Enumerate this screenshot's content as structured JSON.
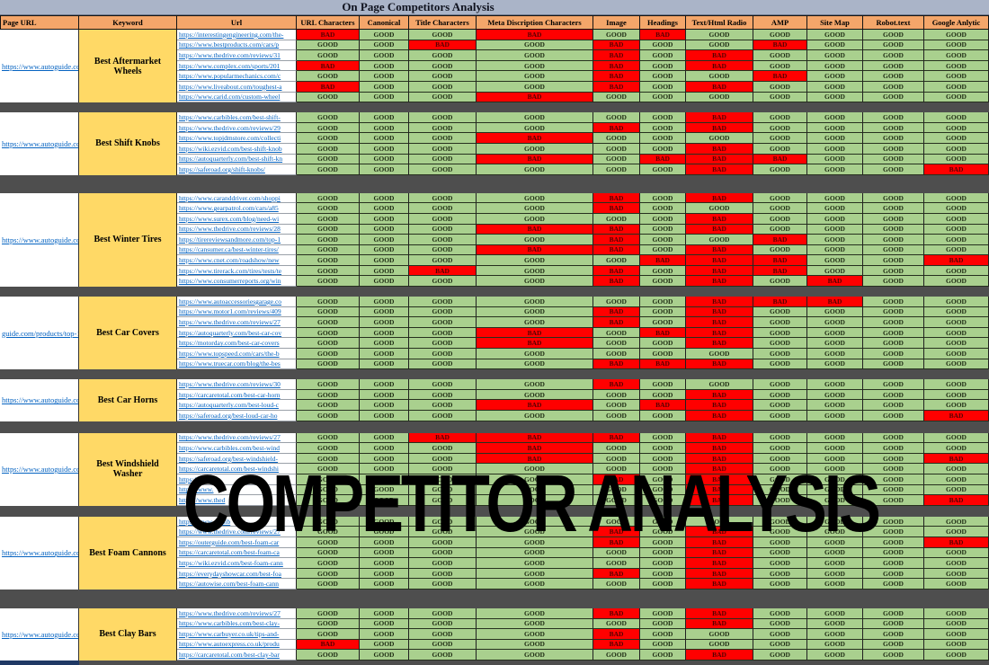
{
  "title": "On Page Competitors Analysis",
  "watermark": "COMPETITOR ANALYSIS",
  "columns": [
    "Page URL",
    "Keyword",
    "Url",
    "URL Characters",
    "Canonical",
    "Title Characters",
    "Meta Discription Characters",
    "Image",
    "Headings",
    "Text/Html Radio",
    "AMP",
    "Site Map",
    "Robot.text",
    "Google Anlytic"
  ],
  "colors": {
    "good_bg": "#a9d08e",
    "bad_bg": "#ff0000",
    "header_bg": "#f4a66a",
    "keyword_bg": "#ffd966",
    "title_bar_bg": "#aab4c8",
    "separator": "#4e4e4e",
    "link": "#0563c1",
    "partial_row_bg": "#1f3864"
  },
  "groups": [
    {
      "page_url": "https://www.autoguide.co",
      "keyword": "Best Aftermarket Wheels",
      "rows": [
        {
          "url": "https://interestingengineering.com/the-",
          "values": [
            "BAD",
            "GOOD",
            "GOOD",
            "BAD",
            "GOOD",
            "BAD",
            "GOOD",
            "GOOD",
            "GOOD",
            "GOOD",
            "GOOD"
          ]
        },
        {
          "url": "https://www.bestproducts.com/cars/p",
          "values": [
            "GOOD",
            "GOOD",
            "BAD",
            "GOOD",
            "BAD",
            "GOOD",
            "GOOD",
            "BAD",
            "GOOD",
            "GOOD",
            "GOOD"
          ]
        },
        {
          "url": "https://www.thedrive.com/reviews/31",
          "values": [
            "GOOD",
            "GOOD",
            "GOOD",
            "GOOD",
            "BAD",
            "GOOD",
            "BAD",
            "GOOD",
            "GOOD",
            "GOOD",
            "GOOD"
          ]
        },
        {
          "url": "https://www.complex.com/sports/201",
          "values": [
            "BAD",
            "GOOD",
            "GOOD",
            "GOOD",
            "BAD",
            "GOOD",
            "BAD",
            "GOOD",
            "GOOD",
            "GOOD",
            "GOOD"
          ]
        },
        {
          "url": "https://www.popularmechanics.com/c",
          "values": [
            "GOOD",
            "GOOD",
            "GOOD",
            "GOOD",
            "BAD",
            "GOOD",
            "GOOD",
            "BAD",
            "GOOD",
            "GOOD",
            "GOOD"
          ]
        },
        {
          "url": "https://www.liveabout.com/toughest-a",
          "values": [
            "BAD",
            "GOOD",
            "GOOD",
            "GOOD",
            "BAD",
            "GOOD",
            "BAD",
            "GOOD",
            "GOOD",
            "GOOD",
            "GOOD"
          ]
        },
        {
          "url": "https://www.carid.com/custom-wheel",
          "values": [
            "GOOD",
            "GOOD",
            "GOOD",
            "BAD",
            "GOOD",
            "GOOD",
            "GOOD",
            "GOOD",
            "GOOD",
            "GOOD",
            "GOOD"
          ]
        }
      ]
    },
    {
      "page_url": "https://www.autoguide.co",
      "keyword": "Best Shift Knobs",
      "rows": [
        {
          "url": "https://www.carbibles.com/best-shift-",
          "values": [
            "GOOD",
            "GOOD",
            "GOOD",
            "GOOD",
            "GOOD",
            "GOOD",
            "BAD",
            "GOOD",
            "GOOD",
            "GOOD",
            "GOOD"
          ]
        },
        {
          "url": "https://www.thedrive.com/reviews/29",
          "values": [
            "GOOD",
            "GOOD",
            "GOOD",
            "GOOD",
            "BAD",
            "GOOD",
            "BAD",
            "GOOD",
            "GOOD",
            "GOOD",
            "GOOD"
          ]
        },
        {
          "url": "https://www.topjdmstore.com/collecti",
          "values": [
            "GOOD",
            "GOOD",
            "GOOD",
            "BAD",
            "GOOD",
            "GOOD",
            "GOOD",
            "GOOD",
            "GOOD",
            "GOOD",
            "GOOD"
          ]
        },
        {
          "url": "https://wiki.ezvid.com/best-shift-knob",
          "values": [
            "GOOD",
            "GOOD",
            "GOOD",
            "GOOD",
            "GOOD",
            "GOOD",
            "BAD",
            "GOOD",
            "GOOD",
            "GOOD",
            "GOOD"
          ]
        },
        {
          "url": "https://autoquarterly.com/best-shift-kn",
          "values": [
            "GOOD",
            "GOOD",
            "GOOD",
            "BAD",
            "GOOD",
            "BAD",
            "BAD",
            "BAD",
            "GOOD",
            "GOOD",
            "GOOD"
          ]
        },
        {
          "url": "https://saferoad.org/shift-knobs/",
          "values": [
            "GOOD",
            "GOOD",
            "GOOD",
            "GOOD",
            "GOOD",
            "GOOD",
            "BAD",
            "GOOD",
            "GOOD",
            "GOOD",
            "BAD"
          ]
        }
      ]
    },
    {
      "page_url": "https://www.autoguide.co",
      "keyword": "Best Winter Tires",
      "rows": [
        {
          "url": "https://www.caranddriver.com/shoppi",
          "values": [
            "GOOD",
            "GOOD",
            "GOOD",
            "GOOD",
            "BAD",
            "GOOD",
            "BAD",
            "GOOD",
            "GOOD",
            "GOOD",
            "GOOD"
          ]
        },
        {
          "url": "https://www.gearpatrol.com/cars/a85",
          "values": [
            "GOOD",
            "GOOD",
            "GOOD",
            "GOOD",
            "BAD",
            "GOOD",
            "GOOD",
            "GOOD",
            "GOOD",
            "GOOD",
            "GOOD"
          ]
        },
        {
          "url": "https://www.surex.com/blog/need-wi",
          "values": [
            "GOOD",
            "GOOD",
            "GOOD",
            "GOOD",
            "GOOD",
            "GOOD",
            "BAD",
            "GOOD",
            "GOOD",
            "GOOD",
            "GOOD"
          ]
        },
        {
          "url": "https://www.thedrive.com/reviews/28",
          "values": [
            "GOOD",
            "GOOD",
            "GOOD",
            "BAD",
            "BAD",
            "GOOD",
            "BAD",
            "GOOD",
            "GOOD",
            "GOOD",
            "GOOD"
          ]
        },
        {
          "url": "https://tirereviewsandmore.com/top-1",
          "values": [
            "GOOD",
            "GOOD",
            "GOOD",
            "GOOD",
            "BAD",
            "GOOD",
            "GOOD",
            "BAD",
            "GOOD",
            "GOOD",
            "GOOD"
          ]
        },
        {
          "url": "https://cansumer.ca/best-winter-tires/",
          "values": [
            "GOOD",
            "GOOD",
            "GOOD",
            "BAD",
            "BAD",
            "GOOD",
            "BAD",
            "GOOD",
            "GOOD",
            "GOOD",
            "GOOD"
          ]
        },
        {
          "url": "https://www.cnet.com/roadshow/new",
          "values": [
            "GOOD",
            "GOOD",
            "GOOD",
            "GOOD",
            "GOOD",
            "BAD",
            "BAD",
            "BAD",
            "GOOD",
            "GOOD",
            "BAD"
          ]
        },
        {
          "url": "https://www.tirerack.com/tires/tests/te",
          "values": [
            "GOOD",
            "GOOD",
            "BAD",
            "GOOD",
            "BAD",
            "GOOD",
            "BAD",
            "BAD",
            "GOOD",
            "GOOD",
            "GOOD"
          ]
        },
        {
          "url": "https://www.consumerreports.org/win",
          "values": [
            "GOOD",
            "GOOD",
            "GOOD",
            "GOOD",
            "BAD",
            "GOOD",
            "BAD",
            "GOOD",
            "BAD",
            "GOOD",
            "GOOD"
          ]
        }
      ]
    },
    {
      "page_url": "guide.com/products/top-1",
      "keyword": "Best Car Covers",
      "rows": [
        {
          "url": "https://www.autoaccessoriesgarage.co",
          "values": [
            "GOOD",
            "GOOD",
            "GOOD",
            "GOOD",
            "GOOD",
            "GOOD",
            "BAD",
            "BAD",
            "BAD",
            "GOOD",
            "GOOD"
          ]
        },
        {
          "url": "https://www.motor1.com/reviews/409",
          "values": [
            "GOOD",
            "GOOD",
            "GOOD",
            "GOOD",
            "BAD",
            "GOOD",
            "BAD",
            "GOOD",
            "GOOD",
            "GOOD",
            "GOOD"
          ]
        },
        {
          "url": "https://www.thedrive.com/reviews/27",
          "values": [
            "GOOD",
            "GOOD",
            "GOOD",
            "GOOD",
            "BAD",
            "GOOD",
            "BAD",
            "GOOD",
            "GOOD",
            "GOOD",
            "GOOD"
          ]
        },
        {
          "url": "https://autoquarterly.com/best-car-cov",
          "values": [
            "GOOD",
            "GOOD",
            "GOOD",
            "BAD",
            "GOOD",
            "BAD",
            "BAD",
            "GOOD",
            "GOOD",
            "GOOD",
            "GOOD"
          ]
        },
        {
          "url": "https://motorday.com/best-car-covers",
          "values": [
            "GOOD",
            "GOOD",
            "GOOD",
            "BAD",
            "GOOD",
            "GOOD",
            "BAD",
            "GOOD",
            "GOOD",
            "GOOD",
            "GOOD"
          ]
        },
        {
          "url": "https://www.topspeed.com/cars/the-b",
          "values": [
            "GOOD",
            "GOOD",
            "GOOD",
            "GOOD",
            "GOOD",
            "GOOD",
            "GOOD",
            "GOOD",
            "GOOD",
            "GOOD",
            "GOOD"
          ]
        },
        {
          "url": "https://www.truecar.com/blog/the-bes",
          "values": [
            "GOOD",
            "GOOD",
            "GOOD",
            "GOOD",
            "BAD",
            "BAD",
            "BAD",
            "GOOD",
            "GOOD",
            "GOOD",
            "GOOD"
          ]
        }
      ]
    },
    {
      "page_url": "https://www.autoguide.co",
      "keyword": "Best Car Horns",
      "rows": [
        {
          "url": "https://www.thedrive.com/reviews/30",
          "values": [
            "GOOD",
            "GOOD",
            "GOOD",
            "GOOD",
            "BAD",
            "GOOD",
            "GOOD",
            "GOOD",
            "GOOD",
            "GOOD",
            "GOOD"
          ]
        },
        {
          "url": "https://carcaretotal.com/best-car-horn",
          "values": [
            "GOOD",
            "GOOD",
            "GOOD",
            "GOOD",
            "GOOD",
            "GOOD",
            "BAD",
            "GOOD",
            "GOOD",
            "GOOD",
            "GOOD"
          ]
        },
        {
          "url": "https://autoquarterly.com/best-loud-c",
          "values": [
            "GOOD",
            "GOOD",
            "GOOD",
            "BAD",
            "GOOD",
            "BAD",
            "BAD",
            "GOOD",
            "GOOD",
            "GOOD",
            "GOOD"
          ]
        },
        {
          "url": "https://saferoad.org/best-loud-car-ho",
          "values": [
            "GOOD",
            "GOOD",
            "GOOD",
            "GOOD",
            "GOOD",
            "GOOD",
            "BAD",
            "GOOD",
            "GOOD",
            "GOOD",
            "BAD"
          ]
        }
      ]
    },
    {
      "page_url": "https://www.autoguide.co",
      "keyword": "Best Windshield Washer",
      "rows": [
        {
          "url": "https://www.thedrive.com/reviews/27",
          "values": [
            "GOOD",
            "GOOD",
            "BAD",
            "BAD",
            "BAD",
            "GOOD",
            "BAD",
            "GOOD",
            "GOOD",
            "GOOD",
            "GOOD"
          ]
        },
        {
          "url": "https://www.carbibles.com/best-wind",
          "values": [
            "GOOD",
            "GOOD",
            "GOOD",
            "BAD",
            "GOOD",
            "GOOD",
            "BAD",
            "GOOD",
            "GOOD",
            "GOOD",
            "GOOD"
          ]
        },
        {
          "url": "https://saferoad.org/best-windshield-",
          "values": [
            "GOOD",
            "GOOD",
            "GOOD",
            "BAD",
            "GOOD",
            "GOOD",
            "BAD",
            "GOOD",
            "GOOD",
            "GOOD",
            "BAD"
          ]
        },
        {
          "url": "https://carcaretotal.com/best-windshi",
          "values": [
            "GOOD",
            "GOOD",
            "GOOD",
            "GOOD",
            "GOOD",
            "GOOD",
            "BAD",
            "GOOD",
            "GOOD",
            "GOOD",
            "GOOD"
          ]
        },
        {
          "url": "https://www.",
          "values": [
            "GOOD",
            "GOOD",
            "GOOD",
            "GOOD",
            "BAD",
            "GOOD",
            "BAD",
            "GOOD",
            "GOOD",
            "GOOD",
            "GOOD"
          ]
        },
        {
          "url": "https://www.",
          "values": [
            "GOOD",
            "GOOD",
            "GOOD",
            "GOOD",
            "GOOD",
            "GOOD",
            "BAD",
            "GOOD",
            "GOOD",
            "GOOD",
            "GOOD"
          ]
        },
        {
          "url": "https://www.thed",
          "values": [
            "GOOD",
            "GOOD",
            "GOOD",
            "GOOD",
            "GOOD",
            "GOOD",
            "BAD",
            "GOOD",
            "GOOD",
            "GOOD",
            "BAD"
          ]
        }
      ]
    },
    {
      "page_url": "https://www.autoguide.co",
      "keyword": "Best Foam Cannons",
      "rows": [
        {
          "url": "https://www.carbib",
          "values": [
            "GOOD",
            "GOOD",
            "GOOD",
            "GOOD",
            "GOOD",
            "GOOD",
            "GOOD",
            "GOOD",
            "GOOD",
            "GOOD",
            "GOOD"
          ]
        },
        {
          "url": "https://www.thedrive.com/reviews/27",
          "values": [
            "GOOD",
            "GOOD",
            "GOOD",
            "GOOD",
            "BAD",
            "GOOD",
            "BAD",
            "GOOD",
            "GOOD",
            "GOOD",
            "GOOD"
          ]
        },
        {
          "url": "https://outerguide.com/best-foam-car",
          "values": [
            "GOOD",
            "GOOD",
            "GOOD",
            "GOOD",
            "BAD",
            "GOOD",
            "BAD",
            "GOOD",
            "GOOD",
            "GOOD",
            "BAD"
          ]
        },
        {
          "url": "https://carcaretotal.com/best-foam-ca",
          "values": [
            "GOOD",
            "GOOD",
            "GOOD",
            "GOOD",
            "GOOD",
            "GOOD",
            "BAD",
            "GOOD",
            "GOOD",
            "GOOD",
            "GOOD"
          ]
        },
        {
          "url": "https://wiki.ezvid.com/best-foam-cann",
          "values": [
            "GOOD",
            "GOOD",
            "GOOD",
            "GOOD",
            "GOOD",
            "GOOD",
            "BAD",
            "GOOD",
            "GOOD",
            "GOOD",
            "GOOD"
          ]
        },
        {
          "url": "https://everydayshowcar.com/best-foa",
          "values": [
            "GOOD",
            "GOOD",
            "GOOD",
            "GOOD",
            "BAD",
            "GOOD",
            "BAD",
            "GOOD",
            "GOOD",
            "GOOD",
            "GOOD"
          ]
        },
        {
          "url": "https://autowise.com/best-foam-cann",
          "values": [
            "GOOD",
            "GOOD",
            "GOOD",
            "GOOD",
            "GOOD",
            "GOOD",
            "BAD",
            "GOOD",
            "GOOD",
            "GOOD",
            "GOOD"
          ]
        }
      ]
    },
    {
      "page_url": "https://www.autoguide.co",
      "keyword": "Best Clay Bars",
      "rows": [
        {
          "url": "https://www.thedrive.com/reviews/27",
          "values": [
            "GOOD",
            "GOOD",
            "GOOD",
            "GOOD",
            "BAD",
            "GOOD",
            "BAD",
            "GOOD",
            "GOOD",
            "GOOD",
            "GOOD"
          ]
        },
        {
          "url": "https://www.carbibles.com/best-clay-",
          "values": [
            "GOOD",
            "GOOD",
            "GOOD",
            "GOOD",
            "GOOD",
            "GOOD",
            "BAD",
            "GOOD",
            "GOOD",
            "GOOD",
            "GOOD"
          ]
        },
        {
          "url": "https://www.carbuyer.co.uk/tips-and-",
          "values": [
            "GOOD",
            "GOOD",
            "GOOD",
            "GOOD",
            "BAD",
            "GOOD",
            "GOOD",
            "GOOD",
            "GOOD",
            "GOOD",
            "GOOD"
          ]
        },
        {
          "url": "https://www.autoexpress.co.uk/produ",
          "values": [
            "BAD",
            "GOOD",
            "GOOD",
            "GOOD",
            "BAD",
            "GOOD",
            "GOOD",
            "GOOD",
            "GOOD",
            "GOOD",
            "GOOD"
          ]
        },
        {
          "url": "https://carcaretotal.com/best-clay-bar",
          "values": [
            "GOOD",
            "GOOD",
            "GOOD",
            "GOOD",
            "GOOD",
            "GOOD",
            "BAD",
            "GOOD",
            "GOOD",
            "GOOD",
            "GOOD"
          ]
        }
      ]
    }
  ]
}
